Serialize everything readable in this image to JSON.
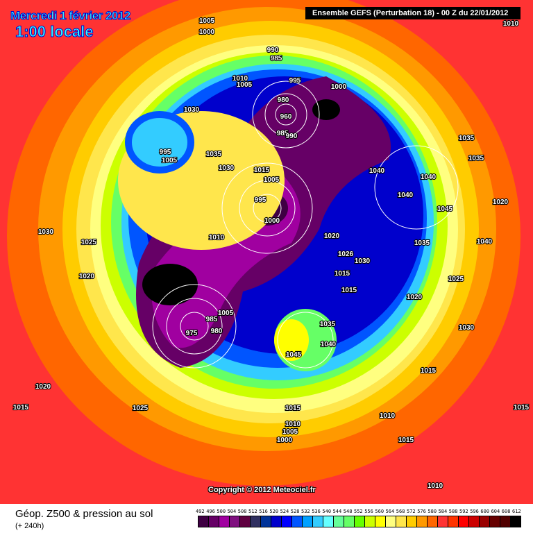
{
  "title": {
    "date": "Mercredi 1 février 2012",
    "time": "1:00 locale"
  },
  "header": "Ensemble GEFS (Perturbation 18)  -  00 Z du 22/01/2012",
  "copyright": "Copyright © 2012 Meteociel.fr",
  "footer": {
    "field": "Géop. Z500 & pression au sol",
    "lead_time": "(+ 240h)"
  },
  "scale": {
    "labels": [
      "492",
      "496",
      "500",
      "504",
      "508",
      "512",
      "516",
      "520",
      "524",
      "528",
      "532",
      "536",
      "540",
      "544",
      "548",
      "552",
      "556",
      "560",
      "564",
      "568",
      "572",
      "576",
      "580",
      "584",
      "588",
      "592",
      "596",
      "600",
      "604",
      "608",
      "612"
    ],
    "colors": [
      "#3F0043",
      "#660066",
      "#A000A0",
      "#801080",
      "#600040",
      "#303060",
      "#003399",
      "#0000CC",
      "#0000FF",
      "#0055FF",
      "#00A0FF",
      "#33CCFF",
      "#66FFFF",
      "#66FF99",
      "#66FF66",
      "#66FF00",
      "#CCFF00",
      "#FFFF00",
      "#FFFF80",
      "#FFE64C",
      "#FFCC00",
      "#FF9900",
      "#FF6600",
      "#FF3333",
      "#FF3300",
      "#FF0000",
      "#CC0000",
      "#990000",
      "#660000",
      "#500000",
      "#000000"
    ]
  },
  "pressure_labels": [
    "1005",
    "1000",
    "1010",
    "990",
    "985",
    "995",
    "1000",
    "1010",
    "1005",
    "1030",
    "980",
    "960",
    "985",
    "990",
    "995",
    "1005",
    "1035",
    "1030",
    "1015",
    "1005",
    "995",
    "1000",
    "1040",
    "1040",
    "1040",
    "1035",
    "1035",
    "1045",
    "1020",
    "1040",
    "1035",
    "1020",
    "1026",
    "1030",
    "1015",
    "1015",
    "1010",
    "1030",
    "1025",
    "1020",
    "1025",
    "1020",
    "1005",
    "980",
    "975",
    "985",
    "1035",
    "1040",
    "1045",
    "1030",
    "1015",
    "1020",
    "1015",
    "1025",
    "1015",
    "1010",
    "1015",
    "1010",
    "1005",
    "1000",
    "1015",
    "1010"
  ]
}
